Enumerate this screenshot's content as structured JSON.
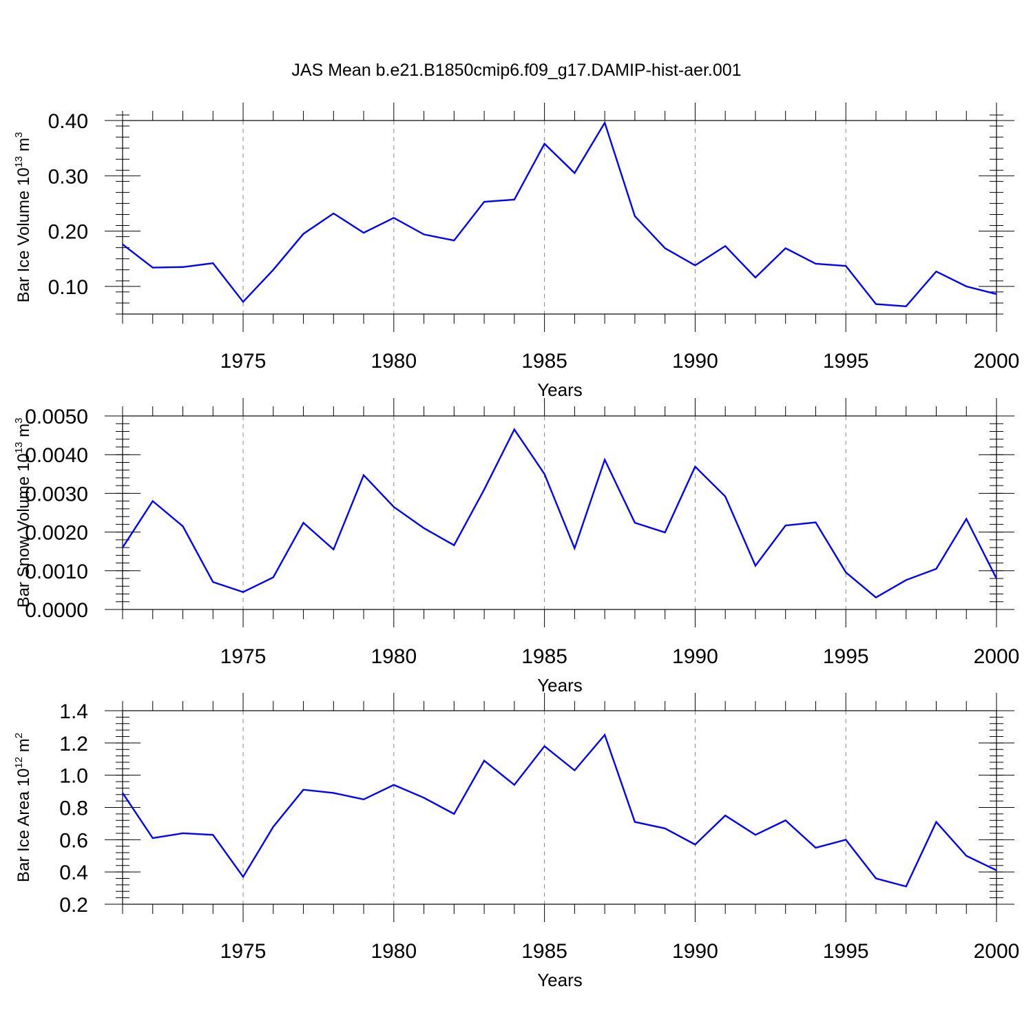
{
  "title": "JAS Mean b.e21.B1850cmip6.f09_g17.DAMIP-hist-aer.001",
  "line_color": "#0000ff",
  "chart_data": [
    {
      "type": "line",
      "series": [
        {
          "name": "Bar Ice Volume",
          "values": [
            0.176,
            0.134,
            0.135,
            0.142,
            0.072,
            0.13,
            0.195,
            0.232,
            0.197,
            0.224,
            0.194,
            0.183,
            0.253,
            0.257,
            0.358,
            0.305,
            0.396,
            0.227,
            0.169,
            0.138,
            0.173,
            0.116,
            0.169,
            0.141,
            0.137,
            0.068,
            0.064,
            0.127,
            0.1,
            0.086
          ]
        }
      ],
      "x": [
        1971,
        1972,
        1973,
        1974,
        1975,
        1976,
        1977,
        1978,
        1979,
        1980,
        1981,
        1982,
        1983,
        1984,
        1985,
        1986,
        1987,
        1988,
        1989,
        1990,
        1991,
        1992,
        1993,
        1994,
        1995,
        1996,
        1997,
        1998,
        1999,
        2000
      ],
      "xlabel": "Years",
      "ylabel": "Bar Ice Volume 10",
      "ylabel_exp": "13",
      "ylabel_unit": " m",
      "ylabel_unit_exp": "3",
      "xlim": [
        1971,
        2000
      ],
      "ylim": [
        0.05,
        0.4
      ],
      "yticks": [
        0.1,
        0.2,
        0.3,
        0.4
      ],
      "ytick_labels": [
        "0.10",
        "0.20",
        "0.30",
        "0.40"
      ],
      "yminor_step": 0.02,
      "xticks": [
        1975,
        1980,
        1985,
        1990,
        1995,
        2000
      ],
      "xtick_labels": [
        "1975",
        "1980",
        "1985",
        "1990",
        "1995",
        "2000"
      ],
      "grid": "vertical dashed at major x ticks"
    },
    {
      "type": "line",
      "series": [
        {
          "name": "Bar Snow Volume",
          "values": [
            0.0016,
            0.0028,
            0.00215,
            0.00071,
            0.00045,
            0.00083,
            0.00224,
            0.00155,
            0.00347,
            0.00265,
            0.0021,
            0.00166,
            0.0031,
            0.00465,
            0.0035,
            0.00158,
            0.00387,
            0.00224,
            0.00199,
            0.00369,
            0.00292,
            0.00113,
            0.00217,
            0.00225,
            0.00096,
            0.00031,
            0.00076,
            0.00105,
            0.00234,
            0.0008
          ]
        }
      ],
      "x": [
        1971,
        1972,
        1973,
        1974,
        1975,
        1976,
        1977,
        1978,
        1979,
        1980,
        1981,
        1982,
        1983,
        1984,
        1985,
        1986,
        1987,
        1988,
        1989,
        1990,
        1991,
        1992,
        1993,
        1994,
        1995,
        1996,
        1997,
        1998,
        1999,
        2000
      ],
      "xlabel": "Years",
      "ylabel": "Bar Snow Volume 10",
      "ylabel_exp": "13",
      "ylabel_unit": " m",
      "ylabel_unit_exp": "3",
      "xlim": [
        1971,
        2000
      ],
      "ylim": [
        0.0,
        0.005
      ],
      "yticks": [
        0.0,
        0.001,
        0.002,
        0.003,
        0.004,
        0.005
      ],
      "ytick_labels": [
        "0.0000",
        "0.0010",
        "0.0020",
        "0.0030",
        "0.0040",
        "0.0050"
      ],
      "yminor_step": 0.0002,
      "xticks": [
        1975,
        1980,
        1985,
        1990,
        1995,
        2000
      ],
      "xtick_labels": [
        "1975",
        "1980",
        "1985",
        "1990",
        "1995",
        "2000"
      ],
      "grid": "vertical dashed at major x ticks"
    },
    {
      "type": "line",
      "series": [
        {
          "name": "Bar Ice Area",
          "values": [
            0.89,
            0.61,
            0.64,
            0.63,
            0.37,
            0.68,
            0.91,
            0.89,
            0.85,
            0.94,
            0.86,
            0.76,
            1.09,
            0.94,
            1.18,
            1.03,
            1.25,
            0.71,
            0.67,
            0.57,
            0.75,
            0.63,
            0.72,
            0.55,
            0.6,
            0.36,
            0.31,
            0.71,
            0.5,
            0.41
          ]
        }
      ],
      "x": [
        1971,
        1972,
        1973,
        1974,
        1975,
        1976,
        1977,
        1978,
        1979,
        1980,
        1981,
        1982,
        1983,
        1984,
        1985,
        1986,
        1987,
        1988,
        1989,
        1990,
        1991,
        1992,
        1993,
        1994,
        1995,
        1996,
        1997,
        1998,
        1999,
        2000
      ],
      "xlabel": "Years",
      "ylabel": "Bar Ice Area 10",
      "ylabel_exp": "12",
      "ylabel_unit": " m",
      "ylabel_unit_exp": "2",
      "xlim": [
        1971,
        2000
      ],
      "ylim": [
        0.2,
        1.4
      ],
      "yticks": [
        0.2,
        0.4,
        0.6,
        0.8,
        1.0,
        1.2,
        1.4
      ],
      "ytick_labels": [
        "0.2",
        "0.4",
        "0.6",
        "0.8",
        "1.0",
        "1.2",
        "1.4"
      ],
      "yminor_step": 0.04,
      "xticks": [
        1975,
        1980,
        1985,
        1990,
        1995,
        2000
      ],
      "xtick_labels": [
        "1975",
        "1980",
        "1985",
        "1990",
        "1995",
        "2000"
      ],
      "grid": "vertical dashed at major x ticks"
    }
  ]
}
